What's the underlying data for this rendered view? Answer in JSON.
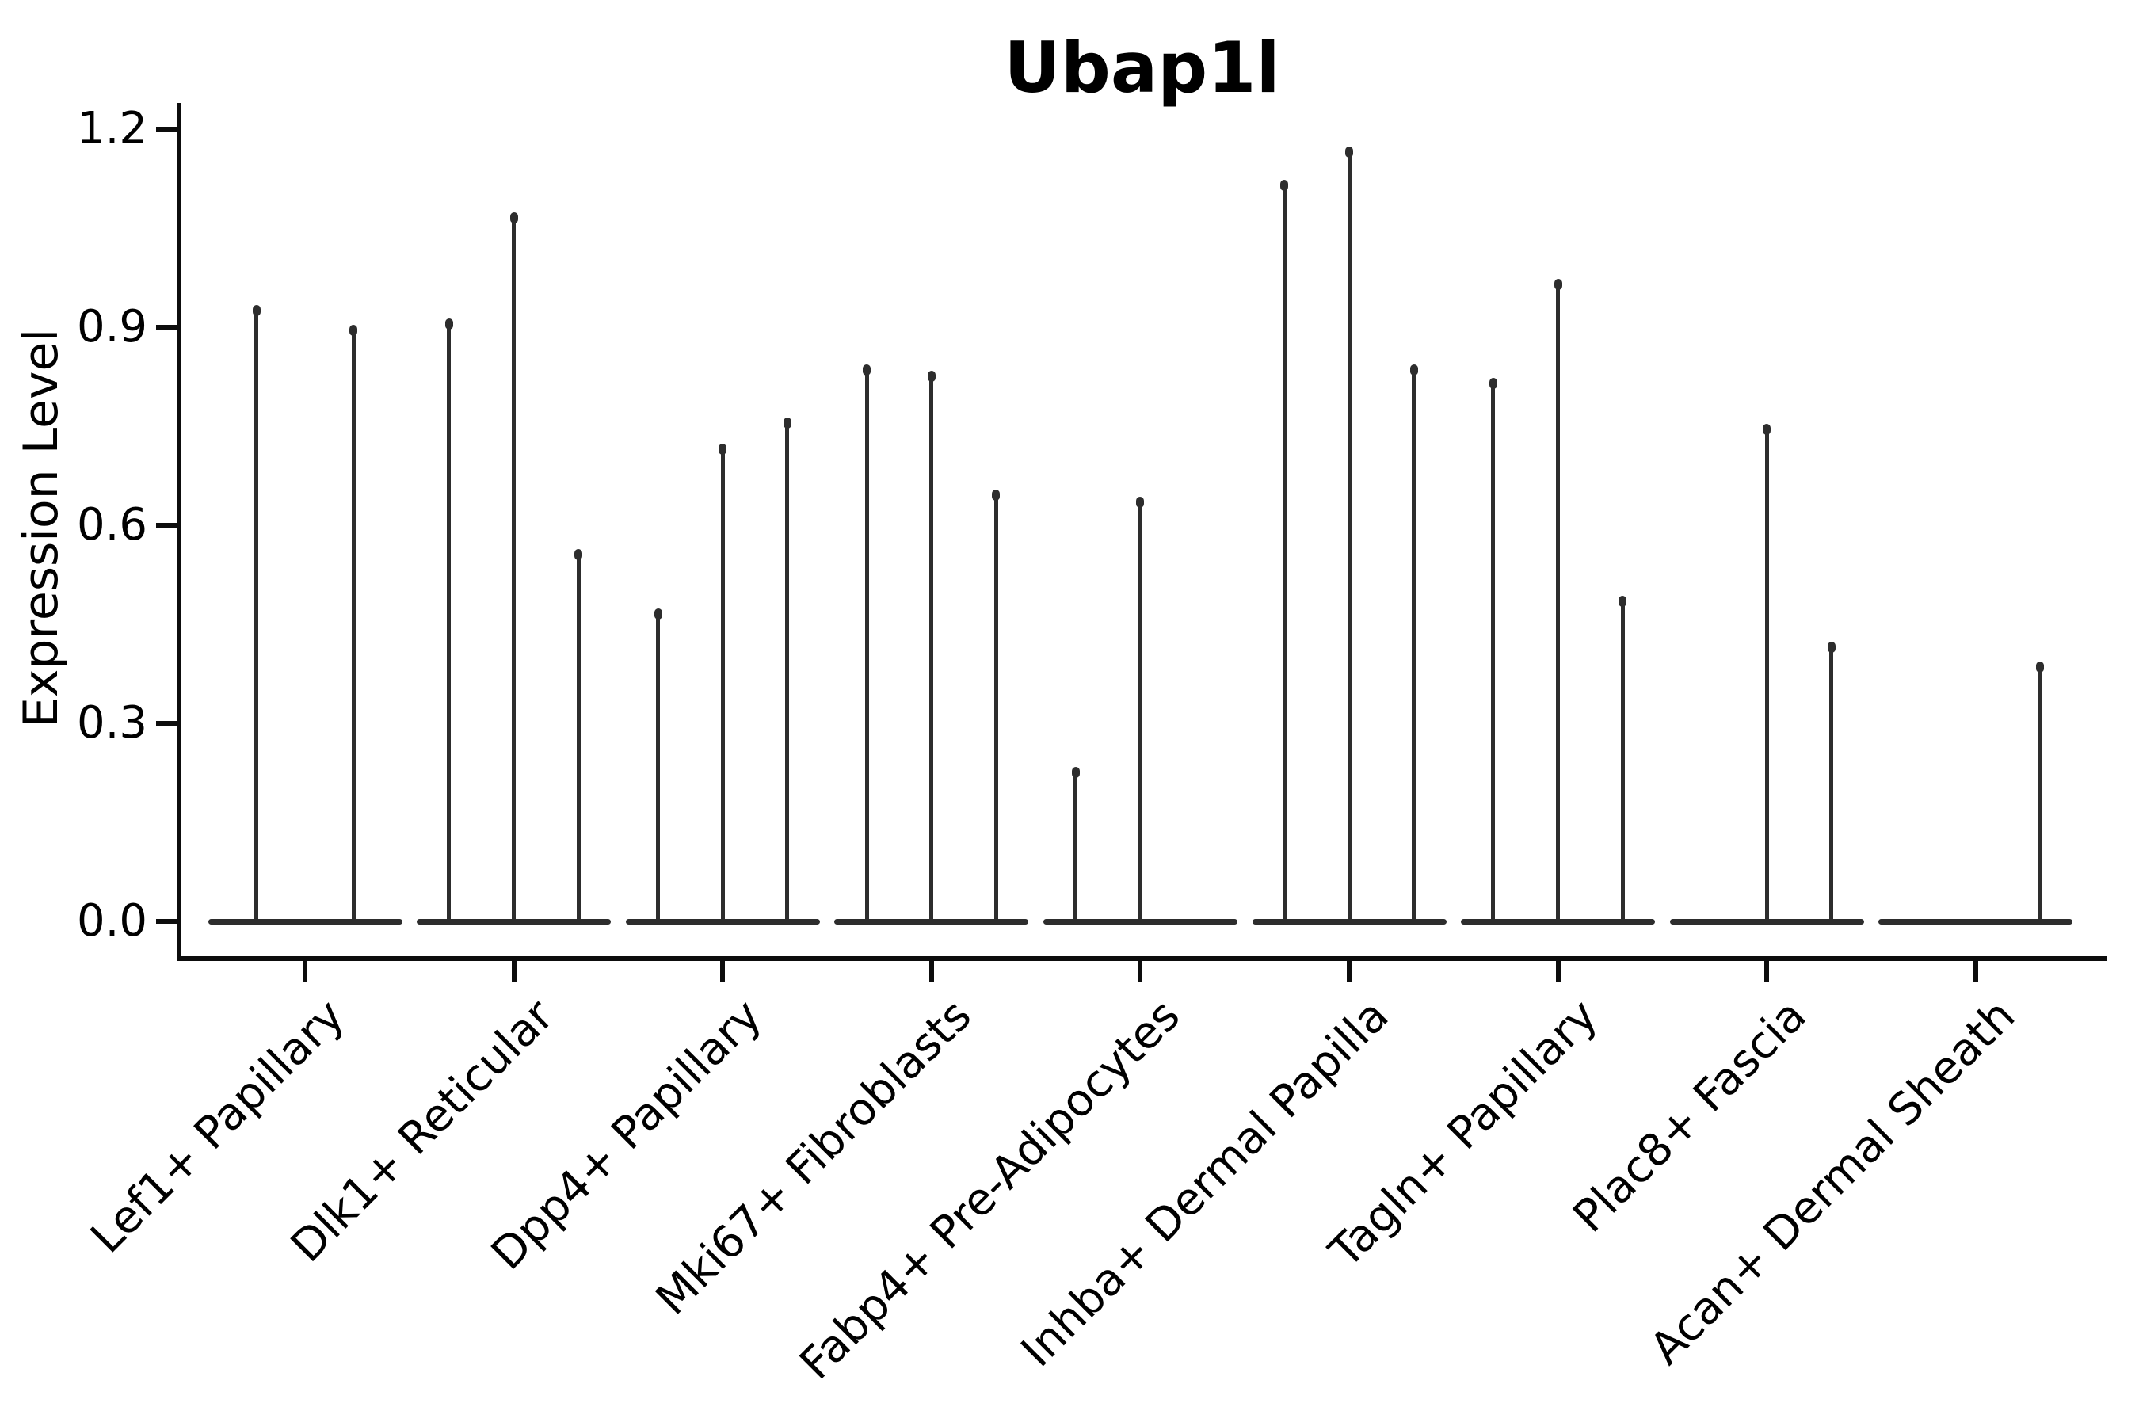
{
  "title": "Ubap1l",
  "axes": {
    "y_label": "Expression Level"
  },
  "colors": {
    "violin_line": "#2d2d2d",
    "axis": "#0d0d0d",
    "text": "#000000",
    "background": "#ffffff"
  },
  "chart_data": {
    "type": "violin",
    "title": "Ubap1l",
    "ylabel": "Expression Level",
    "xlabel": "",
    "grid": false,
    "legend_position": "none",
    "ylim": [
      -0.06,
      1.24
    ],
    "yticks": [
      0.0,
      0.3,
      0.6,
      0.9,
      1.2
    ],
    "ytick_labels": [
      "0.0",
      "0.3",
      "0.6",
      "0.9",
      "1.2"
    ],
    "categories": [
      "Lef1+ Papillary",
      "Dlk1+ Reticular",
      "Dpp4+ Papillary",
      "Mki67+ Fibroblasts",
      "Fabp4+ Pre-Adipocytes",
      "Inhba+ Dermal Papilla",
      "Tagln+ Papillary",
      "Plac8+ Fascia",
      "Acan+ Dermal Sheath"
    ],
    "groups": [
      {
        "label": "Lef1+ Papillary",
        "violin_peak_values": [
          0.93,
          0.9
        ]
      },
      {
        "label": "Dlk1+ Reticular",
        "violin_peak_values": [
          0.91,
          1.07,
          0.56
        ]
      },
      {
        "label": "Dpp4+ Papillary",
        "violin_peak_values": [
          0.47,
          0.72,
          0.76
        ]
      },
      {
        "label": "Mki67+ Fibroblasts",
        "violin_peak_values": [
          0.84,
          0.83,
          0.65
        ]
      },
      {
        "label": "Fabp4+ Pre-Adipocytes",
        "violin_peak_values": [
          0.23,
          0.64,
          0.0
        ]
      },
      {
        "label": "Inhba+ Dermal Papilla",
        "violin_peak_values": [
          1.12,
          1.17,
          0.84
        ]
      },
      {
        "label": "Tagln+ Papillary",
        "violin_peak_values": [
          0.82,
          0.97,
          0.49
        ]
      },
      {
        "label": "Plac8+ Fascia",
        "violin_peak_values": [
          0.0,
          0.75,
          0.42
        ]
      },
      {
        "label": "Acan+ Dermal Sheath",
        "violin_peak_values": [
          0.0,
          0.0,
          0.39
        ]
      }
    ],
    "violin_shape_note": "Each violin is collapsed to a thin vertical spike from 0 up to its peak value over a wide flat base at 0"
  }
}
